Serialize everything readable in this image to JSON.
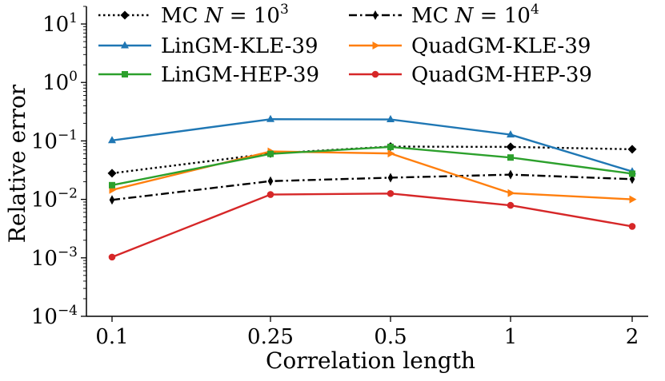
{
  "chart_data": {
    "type": "line",
    "title": "",
    "xlabel": "Correlation length",
    "ylabel": "Relative error",
    "yscale": "log",
    "ylim": [
      0.0001,
      20
    ],
    "categories": [
      "0.1",
      "0.25",
      "0.5",
      "1",
      "2"
    ],
    "y_ticks": [
      {
        "value": 0.0001,
        "base": "10",
        "exp": "−4"
      },
      {
        "value": 0.001,
        "base": "10",
        "exp": "−3"
      },
      {
        "value": 0.01,
        "base": "10",
        "exp": "−2"
      },
      {
        "value": 0.1,
        "base": "10",
        "exp": "−1"
      },
      {
        "value": 1,
        "base": "10",
        "exp": "0"
      },
      {
        "value": 10,
        "base": "10",
        "exp": "1"
      }
    ],
    "legend_position": "top",
    "series": [
      {
        "name_prefix": "MC ",
        "name_var": "N",
        "name_mid": " = 10",
        "name_exp": "3",
        "color": "#000000",
        "dash": "dotted",
        "marker": "diamond",
        "values": [
          0.028,
          0.061,
          0.08,
          0.079,
          0.072
        ]
      },
      {
        "name_prefix": "MC ",
        "name_var": "N",
        "name_mid": " = 10",
        "name_exp": "4",
        "color": "#000000",
        "dash": "dashdot",
        "marker": "thin_diamond",
        "values": [
          0.0098,
          0.0205,
          0.0235,
          0.0265,
          0.0222
        ]
      },
      {
        "name_prefix": "LinGM-KLE-39",
        "color": "#1f77b4",
        "dash": "solid",
        "marker": "triangle",
        "values": [
          0.102,
          0.235,
          0.233,
          0.128,
          0.03
        ]
      },
      {
        "name_prefix": "QuadGM-KLE-39",
        "color": "#ff7f0e",
        "dash": "solid",
        "marker": "triangle_right",
        "values": [
          0.0145,
          0.066,
          0.061,
          0.0128,
          0.01
        ]
      },
      {
        "name_prefix": "LinGM-HEP-39",
        "color": "#2ca02c",
        "dash": "solid",
        "marker": "square",
        "values": [
          0.0175,
          0.06,
          0.079,
          0.052,
          0.0275
        ]
      },
      {
        "name_prefix": "QuadGM-HEP-39",
        "color": "#d62728",
        "dash": "solid",
        "marker": "circle",
        "values": [
          0.00103,
          0.0121,
          0.0126,
          0.0079,
          0.00345
        ]
      }
    ]
  }
}
